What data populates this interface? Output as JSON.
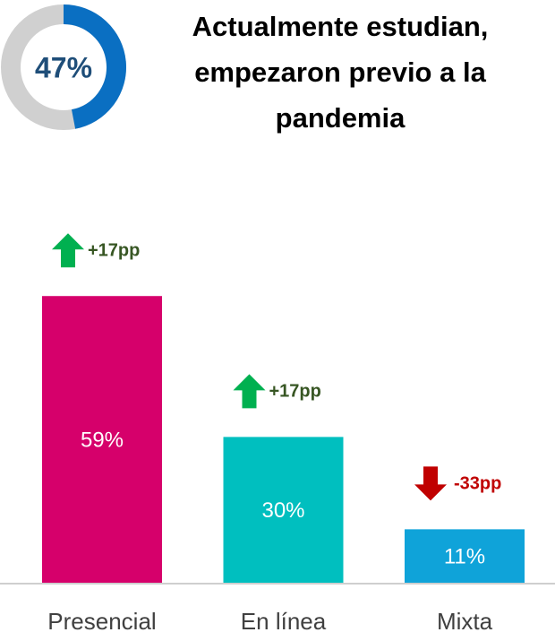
{
  "title_lines": [
    "Actualmente estudian,",
    "empezaron previo a la",
    "pandemia"
  ],
  "chart_data": [
    {
      "type": "donut",
      "values": [
        47
      ],
      "value_labels": [
        "47%"
      ],
      "color": "#0a6fc2",
      "track_color": "#d0d0d0"
    },
    {
      "type": "bar",
      "categories": [
        "Presencial",
        "En línea",
        "Mixta"
      ],
      "values": [
        59,
        30,
        11
      ],
      "value_labels": [
        "59%",
        "30%",
        "11%"
      ],
      "colors": [
        "#d6006b",
        "#00bfbf",
        "#0fa3d9"
      ],
      "changes": [
        17,
        17,
        -33
      ],
      "change_labels": [
        "+17pp",
        "+17pp",
        "-33pp"
      ],
      "up_color": "#00b050",
      "down_color": "#c00000",
      "up_text_color": "#375623",
      "down_text_color": "#c00000"
    }
  ]
}
